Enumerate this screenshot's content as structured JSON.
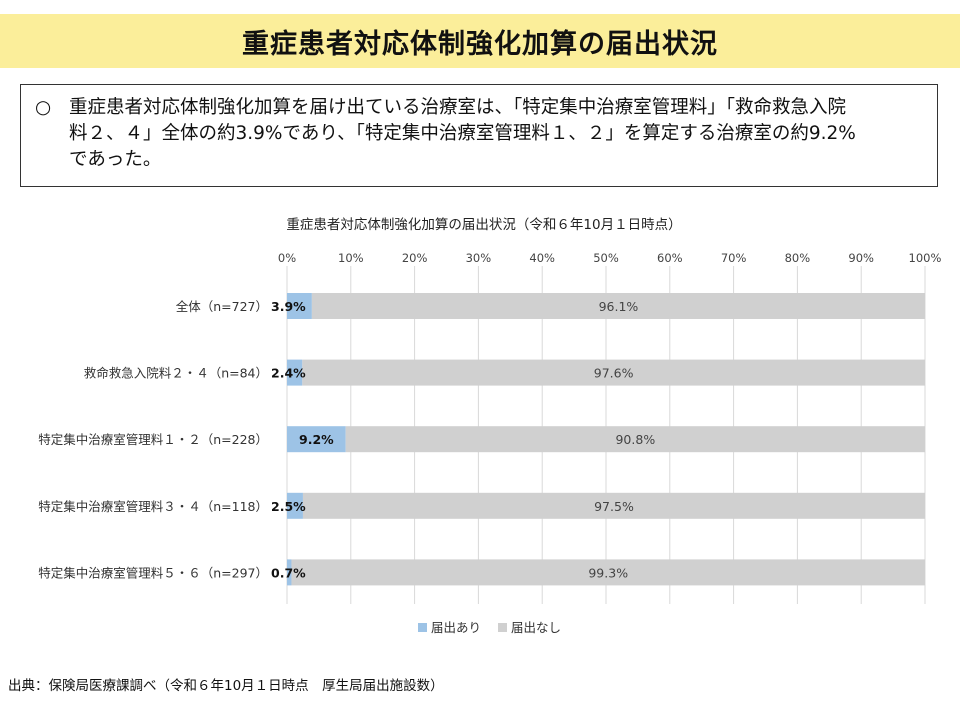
{
  "header": {
    "title": "重症患者対応体制強化加算の届出状況"
  },
  "summary": {
    "bullet": "○",
    "lines": [
      "重症患者対応体制強化加算を届け出ている治療室は、「特定集中治療室管理料」「救命救急入院",
      "料２、４」全体の約3.9%であり、「特定集中治療室管理料１、２」を算定する治療室の約9.2%",
      "であった。"
    ]
  },
  "chart_data": {
    "type": "bar",
    "orientation": "horizontal-stacked-100",
    "title": "重症患者対応体制強化加算の届出状況（令和６年10月１日時点）",
    "categories": [
      "全体（n=727）",
      "救命救急入院料２・４（n=84）",
      "特定集中治療室管理料１・２（n=228）",
      "特定集中治療室管理料３・４（n=118）",
      "特定集中治療室管理料５・６（n=297）"
    ],
    "series": [
      {
        "name": "届出あり",
        "values": [
          3.9,
          2.4,
          9.2,
          2.5,
          0.7
        ],
        "labels": [
          "3.9%",
          "2.4%",
          "9.2%",
          "2.5%",
          "0.7%"
        ],
        "color": "#9dc3e6"
      },
      {
        "name": "届出なし",
        "values": [
          96.1,
          97.6,
          90.8,
          97.5,
          99.3
        ],
        "labels": [
          "96.1%",
          "97.6%",
          "90.8%",
          "97.5%",
          "99.3%"
        ],
        "color": "#d0d0d0"
      }
    ],
    "xlim": [
      0,
      100
    ],
    "xticks": [
      "0%",
      "10%",
      "20%",
      "30%",
      "40%",
      "50%",
      "60%",
      "70%",
      "80%",
      "90%",
      "100%"
    ],
    "grid": true,
    "legend": "bottom"
  },
  "footer": {
    "source": "出典：保険局医療課調べ（令和６年10月１日時点　厚生局届出施設数）"
  }
}
